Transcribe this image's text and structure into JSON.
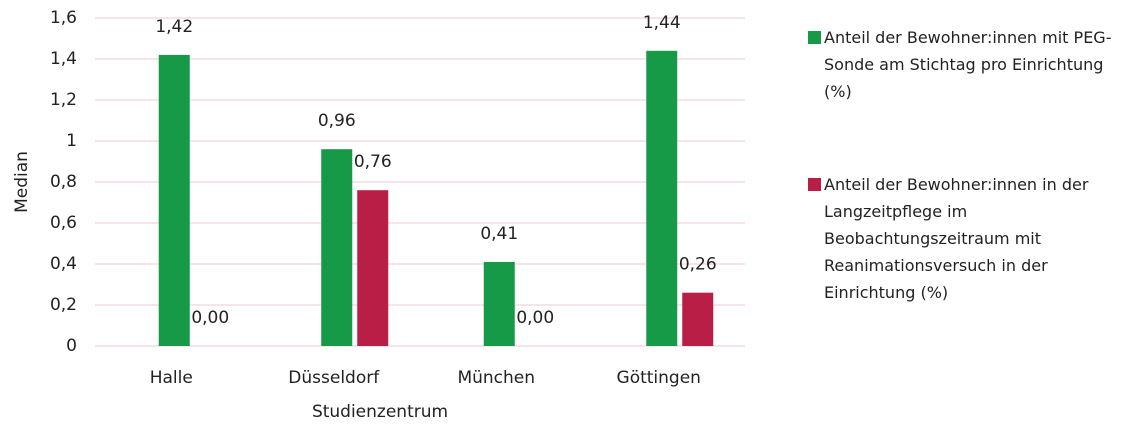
{
  "chart_data": {
    "type": "bar",
    "categories": [
      "Halle",
      "Düsseldorf",
      "München",
      "Göttingen"
    ],
    "series": [
      {
        "name": "Anteil der Bewohner:innen mit PEG-Sonde am Stichtag pro Einrichtung (%)",
        "color": "#169a47",
        "values": [
          1.42,
          0.96,
          0.41,
          1.44
        ],
        "value_labels": [
          "1,42",
          "0,96",
          "0,41",
          "1,44"
        ]
      },
      {
        "name": "Anteil der Bewohner:innen in der Langzeitpflege im Beobachtungszeitraum mit Reanimationsversuch in der Einrichtung (%)",
        "color": "#b81e46",
        "values": [
          0,
          0.76,
          0,
          0.26
        ],
        "value_labels": [
          "0,00",
          "0,76",
          "0,00",
          "0,26"
        ]
      }
    ],
    "x_label": "Studienzentrum",
    "y_label": "Median",
    "ylim": [
      0,
      1.6
    ],
    "yticks": [
      0,
      {
        "value": 0.2,
        "label": "0,2"
      },
      {
        "value": 0.4,
        "label": "0,4"
      },
      {
        "value": 0.6,
        "label": "0,6"
      },
      {
        "value": 0.8,
        "label": "0,8"
      },
      1,
      {
        "value": 1.2,
        "label": "1,2"
      },
      {
        "value": 1.4,
        "label": "1,4"
      },
      {
        "value": 1.6,
        "label": "1,6"
      }
    ],
    "grid": true,
    "legend": "right"
  }
}
